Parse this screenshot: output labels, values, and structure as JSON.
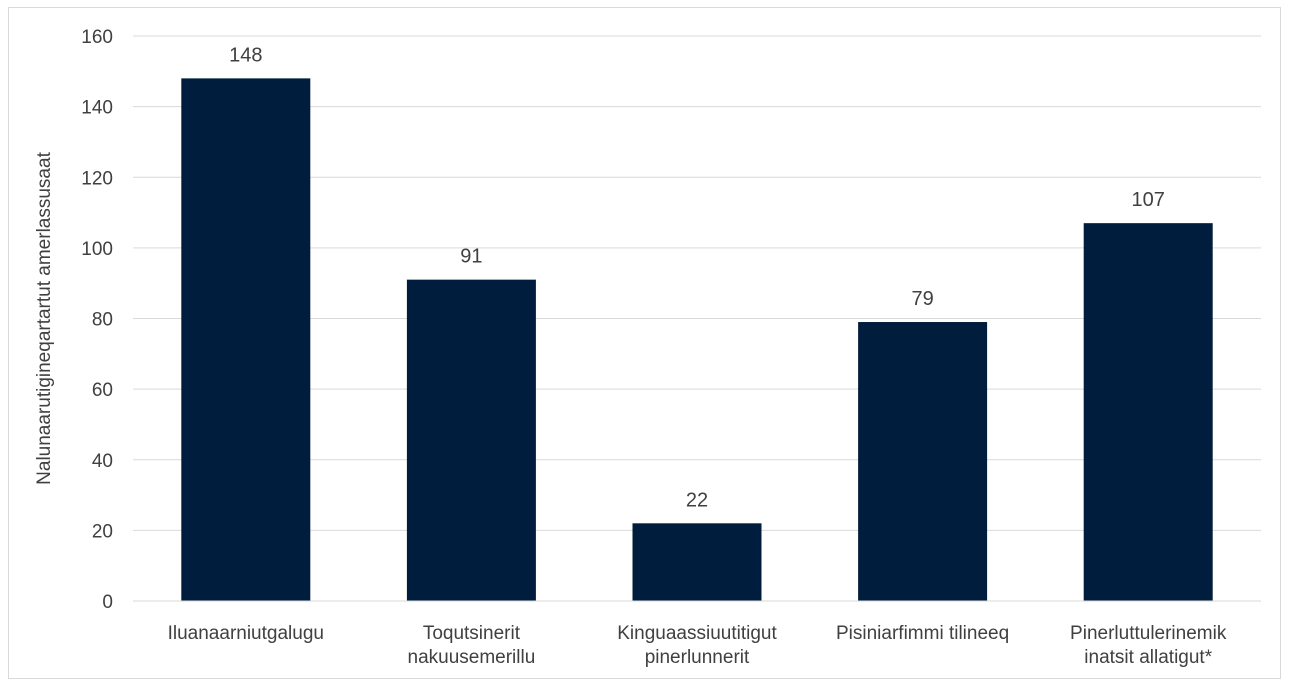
{
  "chart_data": {
    "type": "bar",
    "title": "",
    "xlabel": "",
    "ylabel": "Nalunaarutigineqartartut amerlassusaat",
    "ylim": [
      0,
      160
    ],
    "yticks": [
      0,
      20,
      40,
      60,
      80,
      100,
      120,
      140,
      160
    ],
    "grid": true,
    "categories": [
      [
        "Iluanaarniutgalugu"
      ],
      [
        "Toqutsinerit",
        "nakuusemerillu"
      ],
      [
        "Kinguaassiuutitigut",
        "pinerlunnerit"
      ],
      [
        "Pisiniarfimmi tilineeq"
      ],
      [
        "Pinerluttulerinemik",
        "inatsit allatigut*"
      ]
    ],
    "values": [
      148,
      91,
      22,
      79,
      107
    ],
    "data_labels": [
      "148",
      "91",
      "22",
      "79",
      "107"
    ],
    "bar_color": "#001d3d",
    "grid_color": "#d9d9d9",
    "text_color": "#404040"
  }
}
